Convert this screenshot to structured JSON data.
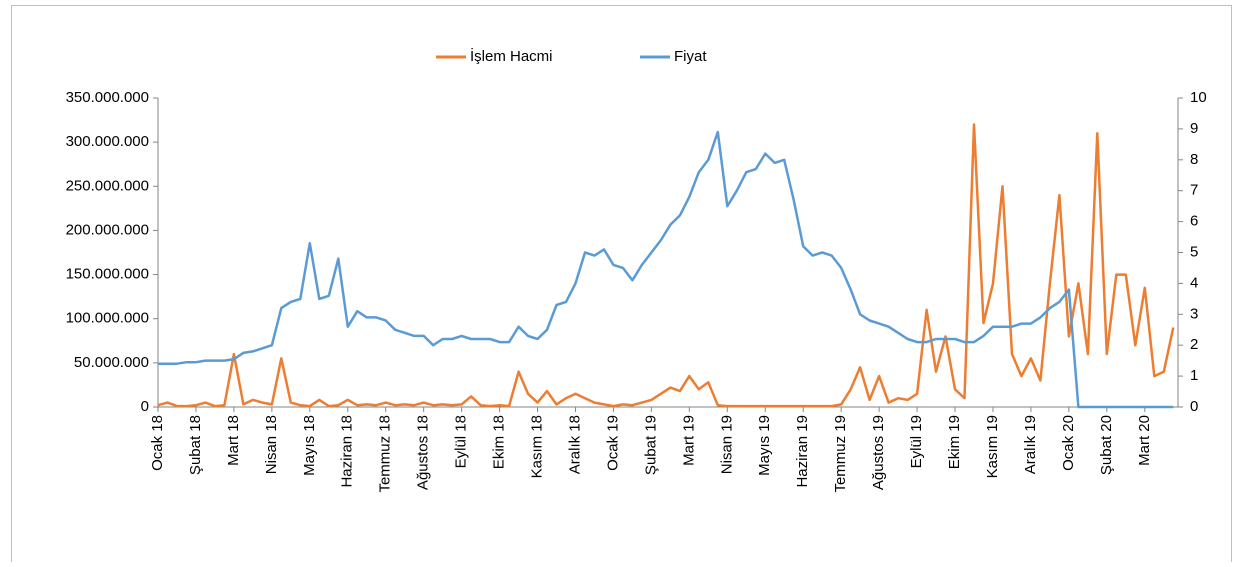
{
  "chart_data": {
    "type": "line",
    "categories": [
      "Ocak 18",
      null,
      null,
      null,
      "Şubat 18",
      null,
      null,
      null,
      "Mart 18",
      null,
      null,
      null,
      "Nisan 18",
      null,
      null,
      null,
      "Mayıs 18",
      null,
      null,
      null,
      "Haziran 18",
      null,
      null,
      null,
      "Temmuz 18",
      null,
      null,
      null,
      "Ağustos 18",
      null,
      null,
      null,
      "Eylül 18",
      null,
      null,
      null,
      "Ekim 18",
      null,
      null,
      null,
      "Kasım 18",
      null,
      null,
      null,
      "Aralık 18",
      null,
      null,
      null,
      "Ocak 19",
      null,
      null,
      null,
      "Şubat 19",
      null,
      null,
      null,
      "Mart 19",
      null,
      null,
      null,
      "Nisan 19",
      null,
      null,
      null,
      "Mayıs 19",
      null,
      null,
      null,
      "Haziran 19",
      null,
      null,
      null,
      "Temmuz 19",
      null,
      null,
      null,
      "Ağustos 19",
      null,
      null,
      null,
      "Eylül 19",
      null,
      null,
      null,
      "Ekim 19",
      null,
      null,
      null,
      "Kasım 19",
      null,
      null,
      null,
      "Aralık 19",
      null,
      null,
      null,
      "Ocak 20",
      null,
      null,
      null,
      "Şubat 20",
      null,
      null,
      null,
      "Mart 20",
      null,
      null,
      null
    ],
    "series": [
      {
        "name": "İşlem Hacmi",
        "color": "#ed7d31",
        "values": [
          2000000,
          5000000,
          1000000,
          1000000,
          2000000,
          5000000,
          1000000,
          2000000,
          60000000,
          3000000,
          8000000,
          5000000,
          3000000,
          55000000,
          5000000,
          2000000,
          1000000,
          8000000,
          1000000,
          2000000,
          8000000,
          2000000,
          3000000,
          2000000,
          5000000,
          2000000,
          3000000,
          2000000,
          5000000,
          2000000,
          3000000,
          2000000,
          3000000,
          12000000,
          2000000,
          1000000,
          2000000,
          1000000,
          40000000,
          15000000,
          5000000,
          18000000,
          3000000,
          10000000,
          15000000,
          10000000,
          5000000,
          3000000,
          1000000,
          3000000,
          2000000,
          5000000,
          8000000,
          15000000,
          22000000,
          18000000,
          35000000,
          20000000,
          28000000,
          2000000,
          1000000,
          1000000,
          1000000,
          1000000,
          1000000,
          1000000,
          1000000,
          1000000,
          1000000,
          1000000,
          1000000,
          1000000,
          3000000,
          20000000,
          45000000,
          8000000,
          35000000,
          5000000,
          10000000,
          8000000,
          15000000,
          110000000,
          40000000,
          80000000,
          20000000,
          10000000,
          320000000,
          95000000,
          140000000,
          250000000,
          60000000,
          35000000,
          55000000,
          30000000,
          140000000,
          240000000,
          80000000,
          140000000,
          60000000,
          310000000,
          60000000,
          150000000,
          150000000,
          70000000,
          135000000,
          35000000,
          40000000,
          90000000
        ]
      },
      {
        "name": "Fiyat",
        "color": "#5b9bd5",
        "axis": "y2",
        "values": [
          1.4,
          1.4,
          1.4,
          1.45,
          1.45,
          1.5,
          1.5,
          1.5,
          1.55,
          1.75,
          1.8,
          1.9,
          2.0,
          3.2,
          3.4,
          3.5,
          5.3,
          3.5,
          3.6,
          4.8,
          2.6,
          3.1,
          2.9,
          2.9,
          2.8,
          2.5,
          2.4,
          2.3,
          2.3,
          2.0,
          2.2,
          2.2,
          2.3,
          2.2,
          2.2,
          2.2,
          2.1,
          2.1,
          2.6,
          2.3,
          2.2,
          2.5,
          3.3,
          3.4,
          4.0,
          5.0,
          4.9,
          5.1,
          4.6,
          4.5,
          4.1,
          4.6,
          5.0,
          5.4,
          5.9,
          6.2,
          6.8,
          7.6,
          8.0,
          8.9,
          6.5,
          7.0,
          7.6,
          7.7,
          8.2,
          7.9,
          8.0,
          6.7,
          5.2,
          4.9,
          5.0,
          4.9,
          4.5,
          3.8,
          3.0,
          2.8,
          2.7,
          2.6,
          2.4,
          2.2,
          2.1,
          2.1,
          2.2,
          2.2,
          2.2,
          2.1,
          2.1,
          2.3,
          2.6,
          2.6,
          2.6,
          2.7,
          2.7,
          2.9,
          3.2,
          3.4,
          3.8,
          0,
          0,
          0,
          0,
          0,
          0,
          0,
          0,
          0,
          0,
          0
        ]
      }
    ],
    "ylim": [
      0,
      350000000
    ],
    "yticks": [
      0,
      {
        "value": 50000000,
        "label": "50.000.000"
      },
      {
        "value": 100000000,
        "label": "100.000.000"
      },
      {
        "value": 150000000,
        "label": "150.000.000"
      },
      {
        "value": 200000000,
        "label": "200.000.000"
      },
      {
        "value": 250000000,
        "label": "250.000.000"
      },
      {
        "value": 300000000,
        "label": "300.000.000"
      },
      {
        "value": 350000000,
        "label": "350.000.000"
      }
    ],
    "y2lim": [
      0,
      10
    ],
    "y2ticks": [
      0,
      1,
      2,
      3,
      4,
      5,
      6,
      7,
      8,
      9,
      10
    ]
  }
}
